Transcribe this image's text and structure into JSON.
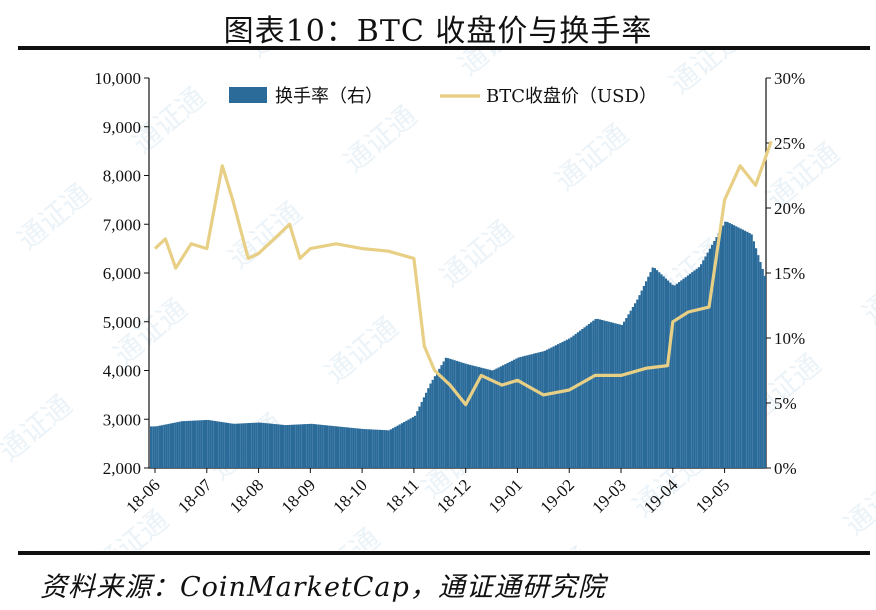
{
  "title": "图表10：BTC 收盘价与换手率",
  "source": "资料来源：CoinMarketCap，通证通研究院",
  "chart_data": {
    "type": "bar+line",
    "x_ticks": [
      "18-06",
      "18-07",
      "18-08",
      "18-09",
      "18-10",
      "18-11",
      "18-12",
      "19-01",
      "19-02",
      "19-03",
      "19-04",
      "19-05"
    ],
    "y_left": {
      "range": [
        2000,
        10000
      ],
      "ticks": [
        "2,000",
        "3,000",
        "4,000",
        "5,000",
        "6,000",
        "7,000",
        "8,000",
        "9,000",
        "10,000"
      ]
    },
    "y_right": {
      "range": [
        0,
        30
      ],
      "ticks": [
        "0%",
        "5%",
        "10%",
        "15%",
        "20%",
        "25%",
        "30%"
      ]
    },
    "legend": [
      "换手率（右）",
      "BTC收盘价（USD）"
    ],
    "colors": {
      "bar": "#2a6b9a",
      "line": "#e8cf86"
    },
    "series": [
      {
        "name": "换手率（右）",
        "type": "bar",
        "axis": "right",
        "unit": "%",
        "x": [
          "18-06",
          "18-06.5",
          "18-07",
          "18-07.5",
          "18-08",
          "18-08.5",
          "18-09",
          "18-09.5",
          "18-10",
          "18-10.5",
          "18-11",
          "18-11.3",
          "18-11.6",
          "18-12",
          "18-12.5",
          "19-01",
          "19-01.5",
          "19-02",
          "19-02.5",
          "19-03",
          "19-03.3",
          "19-03.6",
          "19-04",
          "19-04.5",
          "19-05",
          "19-05.5",
          "19-05.9"
        ],
        "values": [
          3.2,
          3.6,
          3.7,
          3.4,
          3.5,
          3.3,
          3.4,
          3.2,
          3.0,
          2.9,
          4.0,
          6.5,
          8.5,
          8.0,
          7.5,
          8.5,
          9.0,
          10.0,
          11.5,
          11.0,
          13.0,
          15.5,
          14.0,
          15.5,
          19.0,
          18.0,
          13.0
        ]
      },
      {
        "name": "BTC收盘价（USD）",
        "type": "line",
        "axis": "left",
        "unit": "USD",
        "x": [
          "18-06",
          "18-06.2",
          "18-06.4",
          "18-06.7",
          "18-07",
          "18-07.3",
          "18-07.5",
          "18-07.8",
          "18-08",
          "18-08.3",
          "18-08.6",
          "18-08.8",
          "18-09",
          "18-09.5",
          "18-10",
          "18-10.5",
          "18-11",
          "18-11.2",
          "18-11.4",
          "18-11.7",
          "18-12",
          "18-12.3",
          "18-12.7",
          "19-01",
          "19-01.5",
          "19-02",
          "19-02.5",
          "19-03",
          "19-03.5",
          "19-03.9",
          "19-04",
          "19-04.3",
          "19-04.7",
          "19-05",
          "19-05.3",
          "19-05.6",
          "19-05.9"
        ],
        "values": [
          6500,
          6700,
          6100,
          6600,
          6500,
          8200,
          7500,
          6300,
          6400,
          6700,
          7000,
          6300,
          6500,
          6600,
          6500,
          6450,
          6300,
          4500,
          4000,
          3700,
          3300,
          3900,
          3700,
          3800,
          3500,
          3600,
          3900,
          3900,
          4050,
          4100,
          5000,
          5200,
          5300,
          7500,
          8200,
          7800,
          8700
        ]
      }
    ]
  }
}
